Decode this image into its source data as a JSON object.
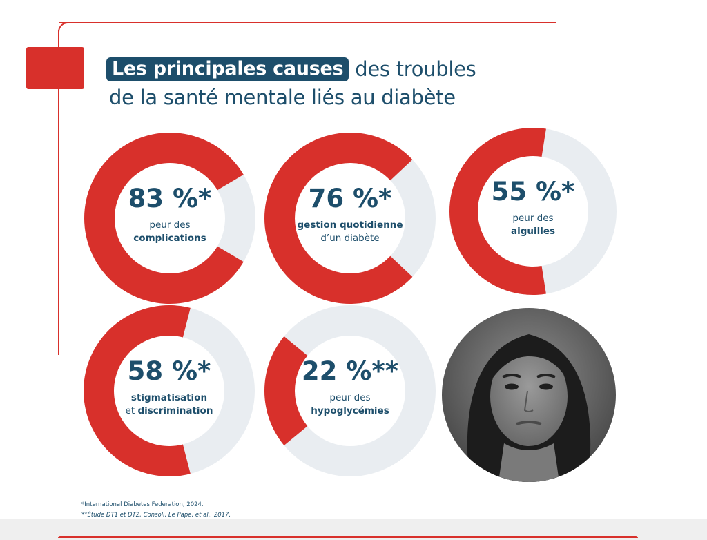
{
  "title": {
    "highlight": "Les principales causes",
    "rest_line1": "des troubles",
    "line2": "de la santé mentale liés au diabète"
  },
  "colors": {
    "red": "#d8302b",
    "track": "#e9edf1",
    "navy": "#1d4e6b",
    "highlight_bg": "#1d4e6b"
  },
  "chart_data": {
    "type": "pie",
    "variant": "donut",
    "title": "Les principales causes des troubles de la santé mentale liés au diabète",
    "unit": "%",
    "series": [
      {
        "value": 83,
        "value_label": "83 %*",
        "label_lines": [
          [
            {
              "text": "peur des",
              "bold": false
            }
          ],
          [
            {
              "text": "complications",
              "bold": true
            }
          ]
        ]
      },
      {
        "value": 76,
        "value_label": "76 %*",
        "label_lines": [
          [
            {
              "text": "gestion quotidienne",
              "bold": true
            }
          ],
          [
            {
              "text": "d’un diabète",
              "bold": false
            }
          ]
        ]
      },
      {
        "value": 55,
        "value_label": "55 %*",
        "label_lines": [
          [
            {
              "text": "peur des",
              "bold": false
            }
          ],
          [
            {
              "text": "aiguilles",
              "bold": true
            }
          ]
        ]
      },
      {
        "value": 58,
        "value_label": "58 %*",
        "label_lines": [
          [
            {
              "text": "stigmatisation",
              "bold": true
            }
          ],
          [
            {
              "text": "et ",
              "bold": false
            },
            {
              "text": "discrimination",
              "bold": true
            }
          ]
        ]
      },
      {
        "value": 22,
        "value_label": "22 %**",
        "label_lines": [
          [
            {
              "text": "peur des",
              "bold": false
            }
          ],
          [
            {
              "text": "hypoglycémies",
              "bold": true
            }
          ]
        ]
      }
    ]
  },
  "footnotes": {
    "note1": "*International Diabetes Federation, 2024.",
    "note2": "**Étude DT1 et DT2, Consoli, Le Pape, et al., 2017."
  }
}
